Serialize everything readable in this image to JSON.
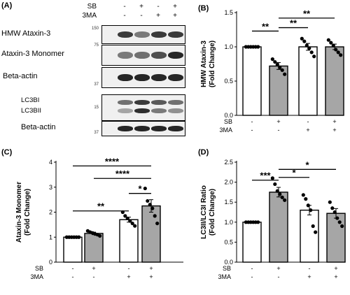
{
  "panel_a": {
    "label": "(A)",
    "treatments": {
      "rows": [
        {
          "name": "SB",
          "signs": [
            "-",
            "+",
            "-",
            "+"
          ]
        },
        {
          "name": "3MA",
          "signs": [
            "-",
            "-",
            "+",
            "+"
          ]
        }
      ]
    },
    "blots": [
      {
        "label": "HMW Ataxin-3",
        "marker": "150",
        "intensity": [
          0.85,
          0.55,
          0.85,
          0.85
        ]
      },
      {
        "label": "Ataxin-3 Monomer",
        "marker": "75",
        "intensity": [
          0.55,
          0.6,
          0.75,
          0.95
        ]
      },
      {
        "label": "Beta-actin",
        "marker": "37",
        "intensity": [
          0.95,
          0.95,
          0.95,
          0.95
        ]
      },
      {
        "label": "LC3BI",
        "label2": "LC3BII",
        "marker": "15",
        "intensity": [
          0.6,
          0.85,
          0.7,
          0.6
        ]
      },
      {
        "label": "Beta-actin",
        "marker": "37",
        "intensity": [
          0.95,
          0.95,
          0.95,
          0.95
        ]
      }
    ]
  },
  "chart_data": [
    {
      "panel": "(B)",
      "type": "bar",
      "ylabel": "HMW Ataxin-3\n(Fold Change)",
      "ylim": [
        0,
        1.5
      ],
      "yticks": [
        0.0,
        0.5,
        1.0,
        1.5
      ],
      "ytick_labels": [
        "0.0",
        "0.5",
        "1.0",
        "1.5"
      ],
      "treatment_rows": [
        {
          "name": "SB",
          "signs": [
            "-",
            "+",
            "-",
            "+"
          ]
        },
        {
          "name": "3MA",
          "signs": [
            "-",
            "-",
            "+",
            "+"
          ]
        }
      ],
      "groups": [
        {
          "value": 1.0,
          "sem": 0.0,
          "fill": "#ffffff",
          "points": [
            1.0,
            1.0,
            1.0,
            1.0,
            1.0,
            1.0
          ]
        },
        {
          "value": 0.72,
          "sem": 0.05,
          "fill": "#a6a6a6",
          "points": [
            0.82,
            0.78,
            0.74,
            0.7,
            0.66,
            0.6
          ]
        },
        {
          "value": 1.0,
          "sem": 0.05,
          "fill": "#ffffff",
          "points": [
            1.12,
            1.08,
            1.02,
            0.98,
            0.92,
            0.86
          ]
        },
        {
          "value": 1.0,
          "sem": 0.04,
          "fill": "#a6a6a6",
          "points": [
            1.1,
            1.06,
            1.02,
            0.96,
            0.92,
            0.88
          ]
        }
      ],
      "significance": [
        {
          "from": 0,
          "to": 1,
          "label": "**",
          "level": 1.23
        },
        {
          "from": 1,
          "to": 3,
          "label": "**",
          "level": 1.42
        },
        {
          "from": 1,
          "to": 2,
          "label": "**",
          "level": 1.28
        }
      ]
    },
    {
      "panel": "(C)",
      "type": "bar",
      "ylabel": "Ataxin-3 Monomer\n(Fold Change)",
      "ylim": [
        0,
        4
      ],
      "yticks": [
        0,
        1,
        2,
        3,
        4
      ],
      "ytick_labels": [
        "0",
        "1",
        "2",
        "3",
        "4"
      ],
      "treatment_rows": [
        {
          "name": "SB",
          "signs": [
            "-",
            "+",
            "-",
            "+"
          ]
        },
        {
          "name": "3MA",
          "signs": [
            "-",
            "-",
            "+",
            "+"
          ]
        }
      ],
      "groups": [
        {
          "value": 1.0,
          "sem": 0.0,
          "fill": "#ffffff",
          "points": [
            1.0,
            1.0,
            1.0,
            1.0,
            1.0,
            1.0
          ]
        },
        {
          "value": 1.15,
          "sem": 0.05,
          "fill": "#a6a6a6",
          "points": [
            1.25,
            1.2,
            1.17,
            1.13,
            1.1,
            1.05
          ]
        },
        {
          "value": 1.7,
          "sem": 0.1,
          "fill": "#ffffff",
          "points": [
            2.0,
            1.85,
            1.75,
            1.65,
            1.55,
            1.45
          ]
        },
        {
          "value": 2.25,
          "sem": 0.25,
          "fill": "#a6a6a6",
          "points": [
            2.95,
            2.45,
            2.3,
            2.15,
            1.85,
            1.55
          ]
        }
      ],
      "significance": [
        {
          "from": 0,
          "to": 2,
          "label": "**",
          "level": 2.05
        },
        {
          "from": 2,
          "to": 3,
          "label": "*",
          "level": 2.75
        },
        {
          "from": 1,
          "to": 3,
          "label": "****",
          "level": 3.35
        },
        {
          "from": 0,
          "to": 3,
          "label": "****",
          "level": 3.85
        }
      ]
    },
    {
      "panel": "(D)",
      "type": "bar",
      "ylabel": "LC3II/LC3I Ratio\n(Fold Change)",
      "ylim": [
        0,
        2.5
      ],
      "yticks": [
        0.0,
        0.5,
        1.0,
        1.5,
        2.0,
        2.5
      ],
      "ytick_labels": [
        "0.0",
        "0.5",
        "1.0",
        "1.5",
        "2.0",
        "2.5"
      ],
      "treatment_rows": [
        {
          "name": "SB",
          "signs": [
            "-",
            "+",
            "-",
            "+"
          ]
        },
        {
          "name": "3MA",
          "signs": [
            "-",
            "-",
            "+",
            "+"
          ]
        }
      ],
      "groups": [
        {
          "value": 1.0,
          "sem": 0.0,
          "fill": "#ffffff",
          "points": [
            1.0,
            1.0,
            1.0,
            1.0,
            1.0,
            1.0
          ]
        },
        {
          "value": 1.75,
          "sem": 0.12,
          "fill": "#a6a6a6",
          "points": [
            2.1,
            1.95,
            1.78,
            1.7,
            1.62,
            1.55
          ]
        },
        {
          "value": 1.3,
          "sem": 0.12,
          "fill": "#ffffff",
          "points": [
            1.68,
            1.58,
            1.42,
            1.3,
            0.9,
            0.75
          ]
        },
        {
          "value": 1.22,
          "sem": 0.12,
          "fill": "#a6a6a6",
          "points": [
            1.5,
            1.35,
            1.25,
            1.1,
            1.0,
            0.9
          ]
        }
      ],
      "significance": [
        {
          "from": 0,
          "to": 1,
          "label": "***",
          "level": 2.05
        },
        {
          "from": 1,
          "to": 3,
          "label": "*",
          "level": 2.32
        },
        {
          "from": 1,
          "to": 2,
          "label": "*",
          "level": 2.12
        }
      ]
    }
  ]
}
